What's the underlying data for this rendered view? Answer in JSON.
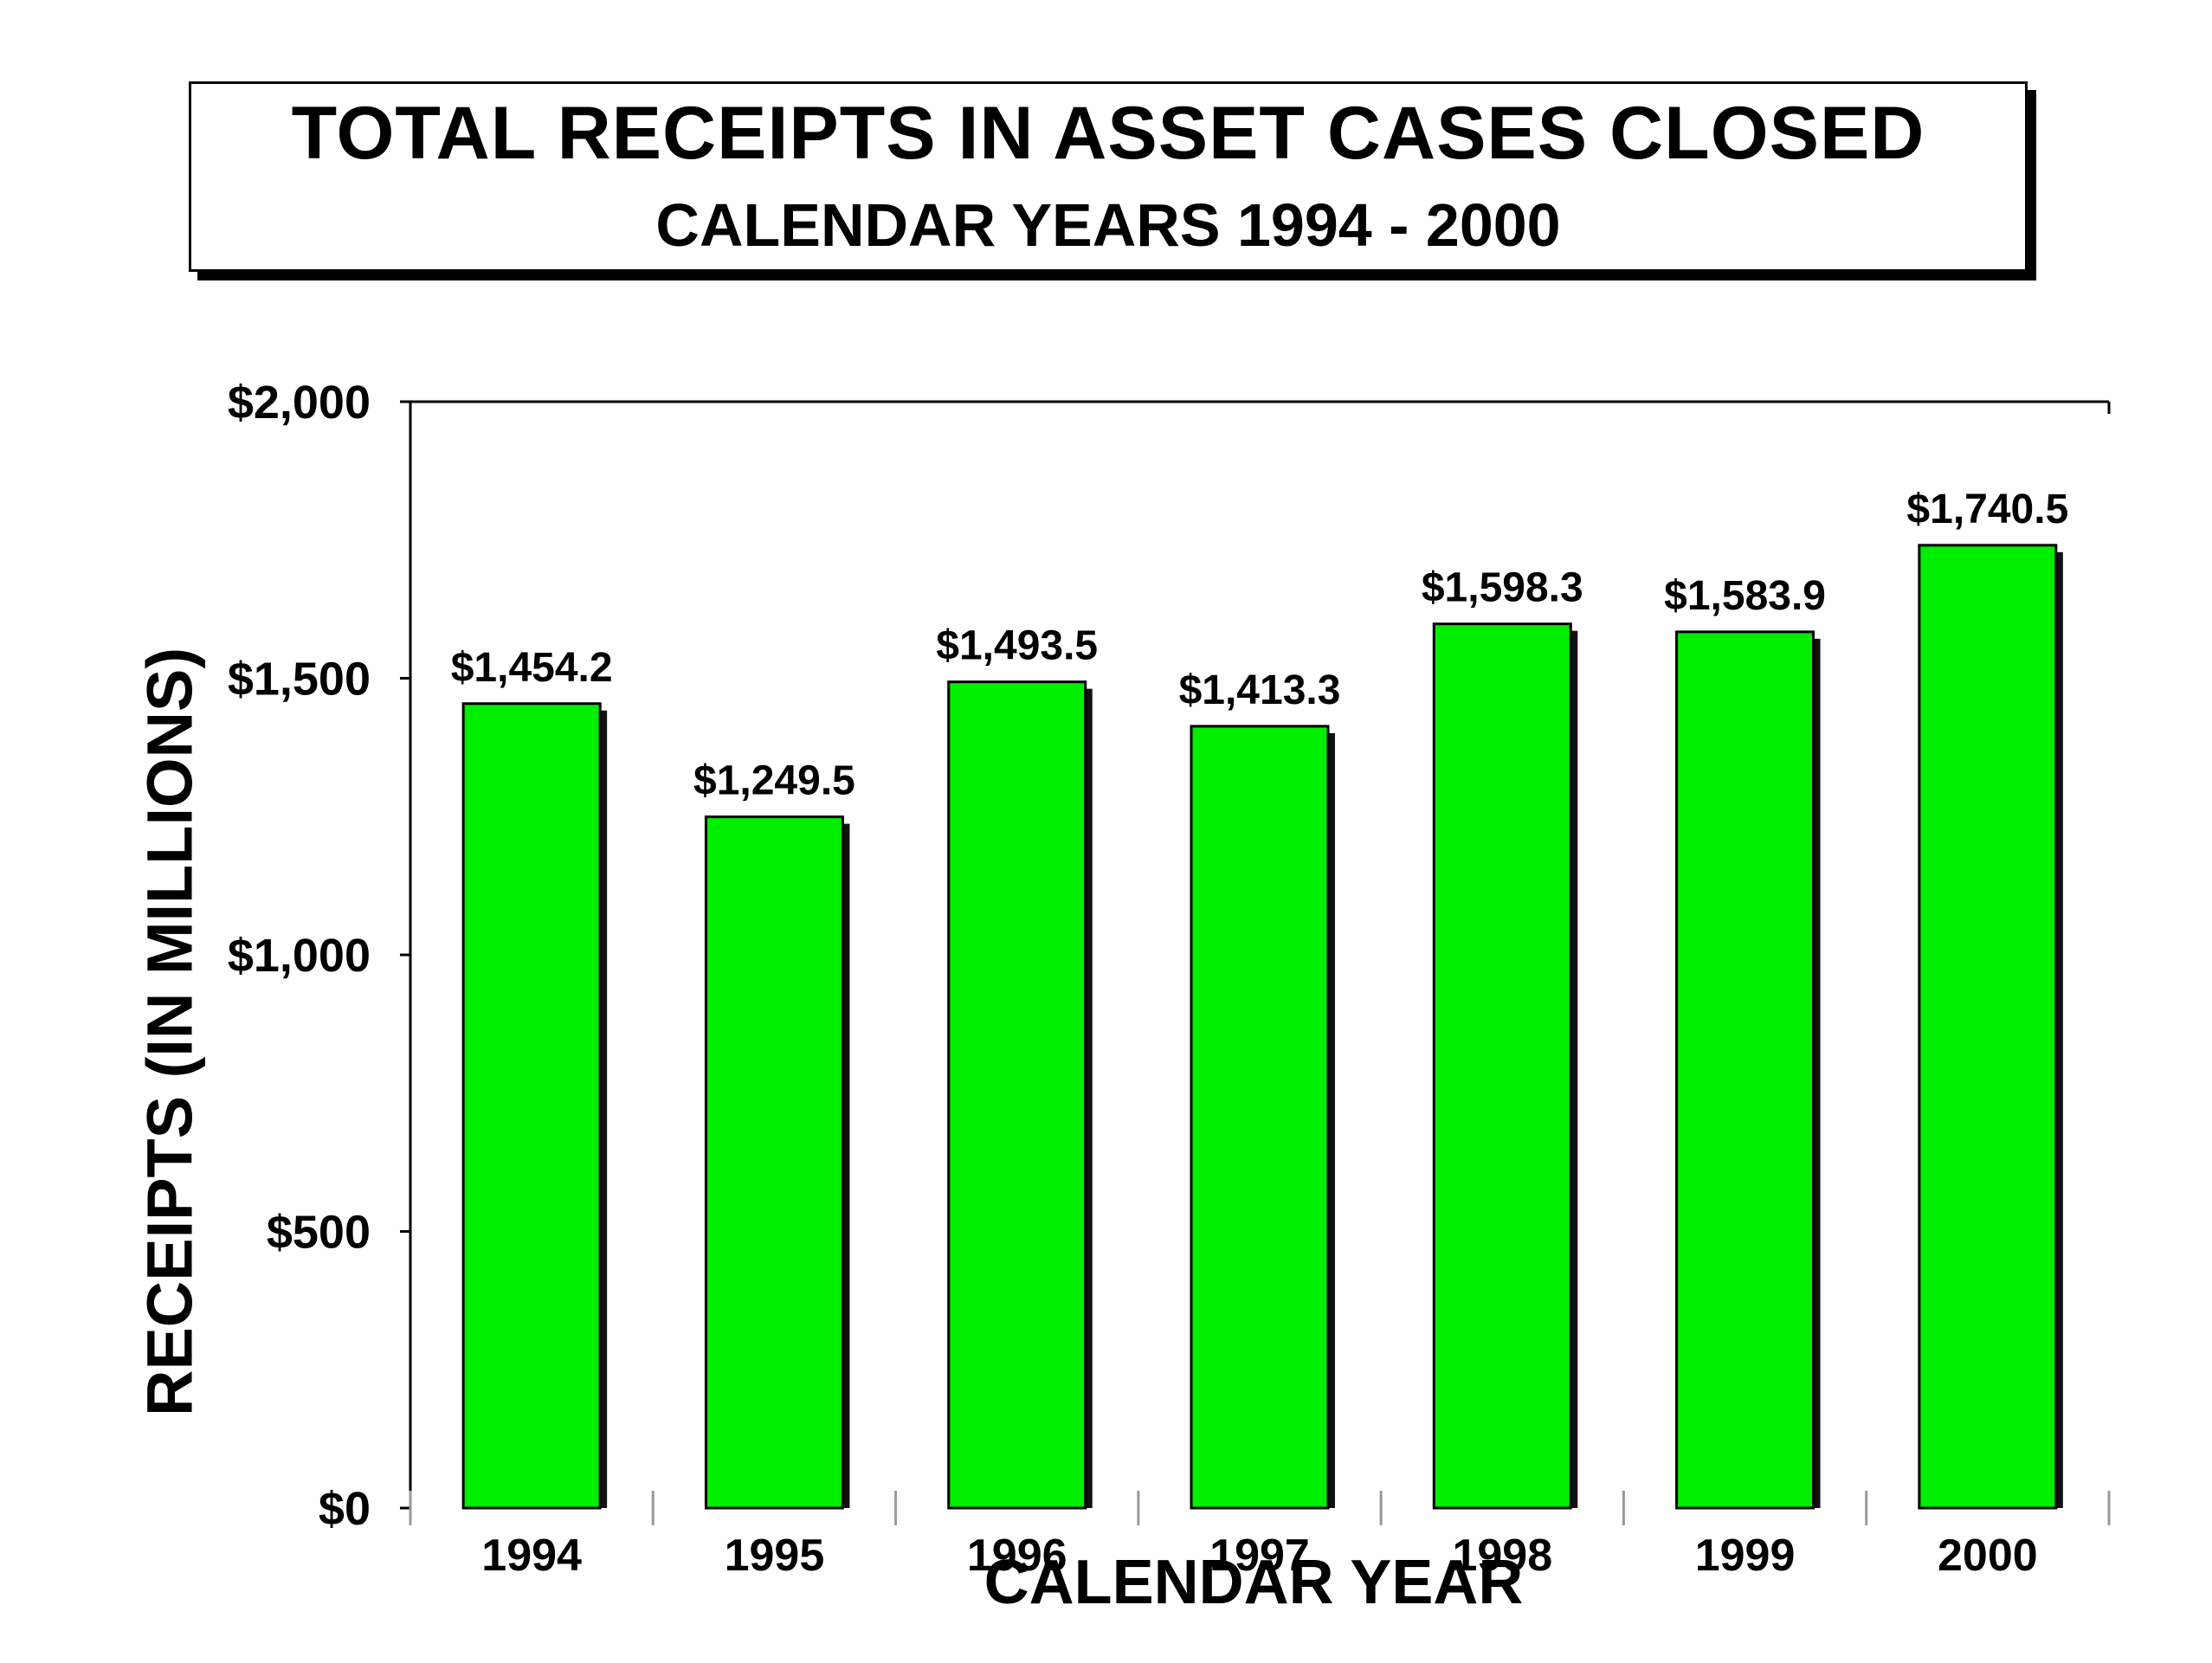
{
  "chart_data": {
    "type": "bar",
    "title": "TOTAL RECEIPTS IN ASSET CASES CLOSED",
    "subtitle": "CALENDAR YEARS 1994 - 2000",
    "xlabel": "CALENDAR YEAR",
    "ylabel": "RECEIPTS (IN MILLIONS)",
    "categories": [
      "1994",
      "1995",
      "1996",
      "1997",
      "1998",
      "1999",
      "2000"
    ],
    "values": [
      1454.2,
      1249.5,
      1493.5,
      1413.3,
      1598.3,
      1583.9,
      1740.5
    ],
    "data_labels": [
      "$1,454.2",
      "$1,249.5",
      "$1,493.5",
      "$1,413.3",
      "$1,598.3",
      "$1,583.9",
      "$1,740.5"
    ],
    "ylim": [
      0,
      2000
    ],
    "yticks": [
      0,
      500,
      1000,
      1500,
      2000
    ],
    "ytick_labels": [
      "$0",
      "$500",
      "$1,000",
      "$1,500",
      "$2,000"
    ],
    "grid": false,
    "legend": "none",
    "bar_color": "#00ee00"
  }
}
